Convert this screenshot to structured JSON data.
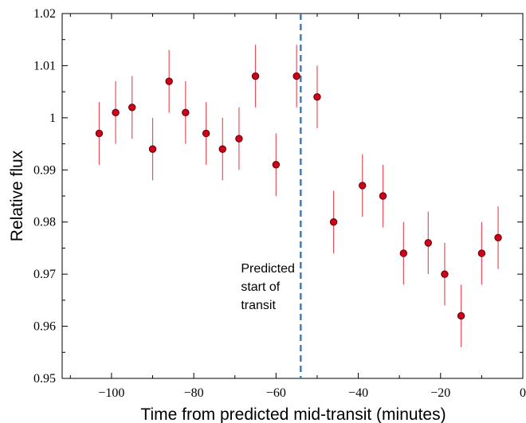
{
  "chart_data": {
    "type": "scatter",
    "xlabel": "Time from predicted mid-transit (minutes)",
    "ylabel": "Relative flux",
    "xlim": [
      -112,
      0
    ],
    "ylim": [
      0.95,
      1.02
    ],
    "x_ticks": [
      -100,
      -80,
      -60,
      -40,
      -20,
      0
    ],
    "x_tick_labels": [
      "−100",
      "−80",
      "−60",
      "−40",
      "−20",
      "0"
    ],
    "y_ticks": [
      0.95,
      0.96,
      0.97,
      0.98,
      0.99,
      1.0,
      1.01,
      1.02
    ],
    "y_tick_labels": [
      "0.95",
      "0.96",
      "0.97",
      "0.98",
      "0.99",
      "1",
      "1.01",
      "1.02"
    ],
    "grid": false,
    "points": [
      {
        "x": -103,
        "y": 0.997,
        "err": 0.006
      },
      {
        "x": -99,
        "y": 1.001,
        "err": 0.006
      },
      {
        "x": -95,
        "y": 1.002,
        "err": 0.006
      },
      {
        "x": -90,
        "y": 0.994,
        "err": 0.006
      },
      {
        "x": -86,
        "y": 1.007,
        "err": 0.006
      },
      {
        "x": -82,
        "y": 1.001,
        "err": 0.006
      },
      {
        "x": -77,
        "y": 0.997,
        "err": 0.006
      },
      {
        "x": -73,
        "y": 0.994,
        "err": 0.006
      },
      {
        "x": -69,
        "y": 0.996,
        "err": 0.006
      },
      {
        "x": -65,
        "y": 1.008,
        "err": 0.006
      },
      {
        "x": -60,
        "y": 0.991,
        "err": 0.006
      },
      {
        "x": -55,
        "y": 1.008,
        "err": 0.006
      },
      {
        "x": -50,
        "y": 1.004,
        "err": 0.006
      },
      {
        "x": -46,
        "y": 0.98,
        "err": 0.006
      },
      {
        "x": -39,
        "y": 0.987,
        "err": 0.006
      },
      {
        "x": -34,
        "y": 0.985,
        "err": 0.006
      },
      {
        "x": -29,
        "y": 0.974,
        "err": 0.006
      },
      {
        "x": -23,
        "y": 0.976,
        "err": 0.006
      },
      {
        "x": -19,
        "y": 0.97,
        "err": 0.006
      },
      {
        "x": -15,
        "y": 0.962,
        "err": 0.006
      },
      {
        "x": -10,
        "y": 0.974,
        "err": 0.006
      },
      {
        "x": -6,
        "y": 0.977,
        "err": 0.006
      }
    ],
    "vline": {
      "x": -54,
      "lines": [
        "Predicted",
        "start of",
        "transit"
      ]
    },
    "colors": {
      "marker_fill": "#d0021b",
      "marker_edge": "#5a0000",
      "errorbar": "#e8505b",
      "vline": "#4a7ab0"
    }
  }
}
